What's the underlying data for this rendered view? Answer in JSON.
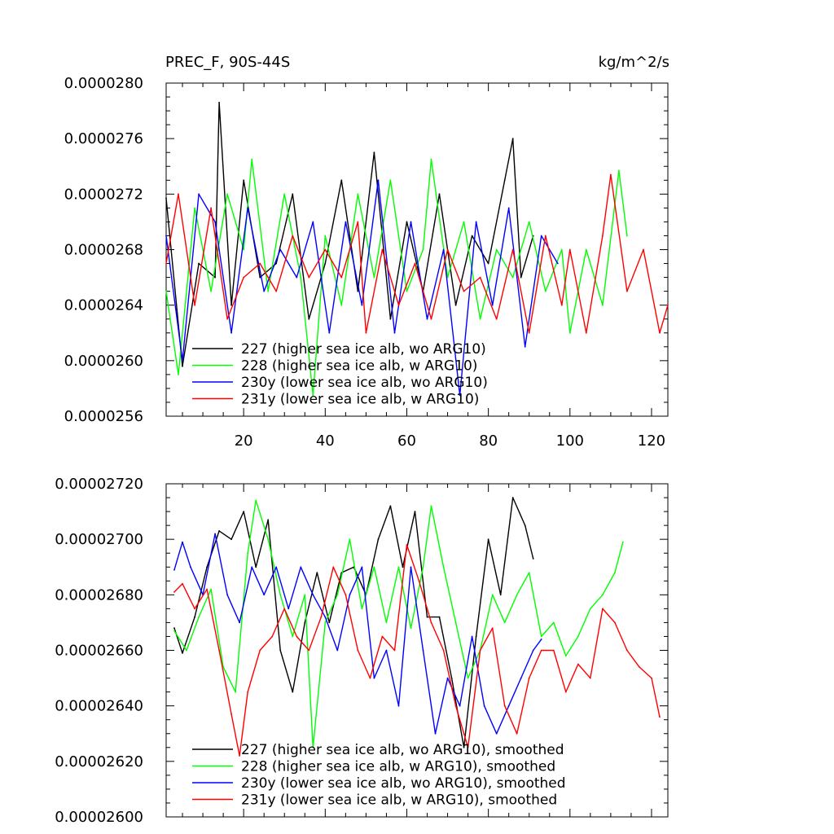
{
  "chart_data": [
    {
      "type": "line",
      "title": "PREC_F, 90S-44S",
      "units": "kg/m^2/s",
      "xlabel": "",
      "ylabel": "",
      "xlim": [
        1,
        124
      ],
      "ylim": [
        2.56e-05,
        2.8e-05
      ],
      "xticks": [
        20,
        40,
        60,
        80,
        100,
        120
      ],
      "xtick_labels": [
        "20",
        "40",
        "60",
        "80",
        "100",
        "120"
      ],
      "yticks": [
        2.56e-05,
        2.6e-05,
        2.64e-05,
        2.68e-05,
        2.72e-05,
        2.76e-05,
        2.8e-05
      ],
      "ytick_labels": [
        "0.0000256",
        "0.0000260",
        "0.0000264",
        "0.0000268",
        "0.0000272",
        "0.0000276",
        "0.0000280"
      ],
      "legend_position": "bottom-left",
      "series": [
        {
          "name": "227 (higher sea ice alb, wo ARG10)",
          "color": "#000000",
          "x": [
            1,
            5,
            9,
            13,
            14,
            17,
            20,
            24,
            28,
            32,
            36,
            40,
            44,
            48,
            52,
            56,
            60,
            64,
            68,
            72,
            76,
            80,
            84,
            86,
            88,
            91
          ],
          "values": [
            2.717e-05,
            2.596e-05,
            2.67e-05,
            2.66e-05,
            2.786e-05,
            2.64e-05,
            2.73e-05,
            2.66e-05,
            2.67e-05,
            2.72e-05,
            2.63e-05,
            2.67e-05,
            2.73e-05,
            2.65e-05,
            2.75e-05,
            2.63e-05,
            2.7e-05,
            2.65e-05,
            2.72e-05,
            2.64e-05,
            2.69e-05,
            2.67e-05,
            2.73e-05,
            2.76e-05,
            2.66e-05,
            2.69e-05
          ]
        },
        {
          "name": "228 (higher sea ice alb, w ARG10)",
          "color": "#00ff00",
          "x": [
            1,
            4,
            8,
            12,
            16,
            20,
            22,
            26,
            30,
            34,
            37,
            40,
            44,
            48,
            52,
            56,
            60,
            64,
            66,
            70,
            74,
            78,
            82,
            86,
            90,
            94,
            98,
            100,
            104,
            108,
            112,
            114
          ],
          "values": [
            2.65e-05,
            2.59e-05,
            2.71e-05,
            2.65e-05,
            2.72e-05,
            2.68e-05,
            2.745e-05,
            2.65e-05,
            2.72e-05,
            2.66e-05,
            2.575e-05,
            2.69e-05,
            2.64e-05,
            2.72e-05,
            2.66e-05,
            2.73e-05,
            2.65e-05,
            2.68e-05,
            2.745e-05,
            2.66e-05,
            2.7e-05,
            2.63e-05,
            2.68e-05,
            2.66e-05,
            2.7e-05,
            2.65e-05,
            2.68e-05,
            2.62e-05,
            2.68e-05,
            2.64e-05,
            2.737e-05,
            2.69e-05
          ]
        },
        {
          "name": "230y (lower sea ice alb, wo ARG10)",
          "color": "#0000ff",
          "x": [
            1,
            5,
            9,
            13,
            17,
            21,
            25,
            29,
            33,
            37,
            41,
            45,
            49,
            53,
            57,
            61,
            65,
            69,
            73,
            77,
            81,
            85,
            89,
            93,
            97
          ],
          "values": [
            2.69e-05,
            2.6e-05,
            2.72e-05,
            2.7e-05,
            2.62e-05,
            2.71e-05,
            2.65e-05,
            2.68e-05,
            2.66e-05,
            2.7e-05,
            2.62e-05,
            2.7e-05,
            2.64e-05,
            2.73e-05,
            2.62e-05,
            2.7e-05,
            2.63e-05,
            2.68e-05,
            2.575e-05,
            2.7e-05,
            2.64e-05,
            2.71e-05,
            2.61e-05,
            2.69e-05,
            2.67e-05
          ]
        },
        {
          "name": "231y (lower sea ice alb, w ARG10)",
          "color": "#ff0000",
          "x": [
            1,
            4,
            8,
            12,
            16,
            20,
            24,
            28,
            32,
            36,
            40,
            44,
            48,
            50,
            54,
            58,
            62,
            66,
            70,
            74,
            78,
            82,
            86,
            90,
            94,
            98,
            100,
            104,
            108,
            110,
            114,
            118,
            122,
            124
          ],
          "values": [
            2.67e-05,
            2.72e-05,
            2.64e-05,
            2.71e-05,
            2.63e-05,
            2.66e-05,
            2.67e-05,
            2.65e-05,
            2.69e-05,
            2.66e-05,
            2.68e-05,
            2.66e-05,
            2.7e-05,
            2.62e-05,
            2.68e-05,
            2.64e-05,
            2.67e-05,
            2.63e-05,
            2.68e-05,
            2.65e-05,
            2.66e-05,
            2.63e-05,
            2.68e-05,
            2.62e-05,
            2.69e-05,
            2.64e-05,
            2.68e-05,
            2.62e-05,
            2.69e-05,
            2.734e-05,
            2.65e-05,
            2.68e-05,
            2.62e-05,
            2.64e-05
          ]
        }
      ]
    },
    {
      "type": "line",
      "title": "",
      "xlabel": "",
      "ylabel": "",
      "xlim": [
        1,
        124
      ],
      "ylim": [
        2.6e-05,
        2.72e-05
      ],
      "xticks": [
        20,
        40,
        60,
        80,
        100,
        120
      ],
      "xtick_labels": [],
      "yticks": [
        2.6e-05,
        2.62e-05,
        2.64e-05,
        2.66e-05,
        2.68e-05,
        2.7e-05,
        2.72e-05
      ],
      "ytick_labels": [
        "0.00002600",
        "0.00002620",
        "0.00002640",
        "0.00002660",
        "0.00002680",
        "0.00002700",
        "0.00002720"
      ],
      "legend_position": "bottom-left",
      "series": [
        {
          "name": "227 (higher sea ice alb, wo ARG10), smoothed",
          "color": "#000000",
          "x": [
            3,
            5,
            8,
            11,
            14,
            17,
            20,
            23,
            26,
            29,
            32,
            35,
            38,
            41,
            44,
            47,
            50,
            53,
            56,
            59,
            62,
            65,
            68,
            71,
            74,
            77,
            80,
            83,
            86,
            89,
            91
          ],
          "values": [
            2.668e-05,
            2.659e-05,
            2.672e-05,
            2.69e-05,
            2.703e-05,
            2.7e-05,
            2.71e-05,
            2.69e-05,
            2.707e-05,
            2.66e-05,
            2.645e-05,
            2.67e-05,
            2.688e-05,
            2.67e-05,
            2.688e-05,
            2.69e-05,
            2.68e-05,
            2.7e-05,
            2.712e-05,
            2.69e-05,
            2.71e-05,
            2.672e-05,
            2.672e-05,
            2.65e-05,
            2.625e-05,
            2.665e-05,
            2.7e-05,
            2.68e-05,
            2.715e-05,
            2.705e-05,
            2.693e-05
          ]
        },
        {
          "name": "228 (higher sea ice alb, w ARG10), smoothed",
          "color": "#00ff00",
          "x": [
            3,
            6,
            9,
            12,
            15,
            18,
            21,
            23,
            26,
            29,
            32,
            35,
            37,
            40,
            43,
            46,
            49,
            52,
            55,
            58,
            61,
            64,
            66,
            69,
            72,
            75,
            78,
            81,
            84,
            87,
            90,
            93,
            96,
            99,
            102,
            105,
            108,
            111,
            113
          ],
          "values": [
            2.667e-05,
            2.66e-05,
            2.672e-05,
            2.682e-05,
            2.654e-05,
            2.645e-05,
            2.695e-05,
            2.714e-05,
            2.7e-05,
            2.68e-05,
            2.665e-05,
            2.68e-05,
            2.625e-05,
            2.67e-05,
            2.68e-05,
            2.7e-05,
            2.675e-05,
            2.69e-05,
            2.67e-05,
            2.69e-05,
            2.668e-05,
            2.69e-05,
            2.712e-05,
            2.69e-05,
            2.67e-05,
            2.65e-05,
            2.66e-05,
            2.68e-05,
            2.67e-05,
            2.68e-05,
            2.688e-05,
            2.665e-05,
            2.67e-05,
            2.658e-05,
            2.665e-05,
            2.675e-05,
            2.68e-05,
            2.688e-05,
            2.699e-05
          ]
        },
        {
          "name": "230y (lower sea ice alb, wo ARG10), smoothed",
          "color": "#0000ff",
          "x": [
            3,
            5,
            7,
            10,
            13,
            16,
            19,
            22,
            25,
            28,
            31,
            34,
            37,
            40,
            43,
            46,
            49,
            52,
            55,
            58,
            61,
            64,
            67,
            70,
            73,
            76,
            79,
            82,
            85,
            88,
            91,
            93
          ],
          "values": [
            2.689e-05,
            2.699e-05,
            2.69e-05,
            2.68e-05,
            2.702e-05,
            2.68e-05,
            2.67e-05,
            2.69e-05,
            2.68e-05,
            2.69e-05,
            2.675e-05,
            2.69e-05,
            2.68e-05,
            2.672e-05,
            2.66e-05,
            2.68e-05,
            2.69e-05,
            2.65e-05,
            2.66e-05,
            2.64e-05,
            2.69e-05,
            2.66e-05,
            2.63e-05,
            2.65e-05,
            2.64e-05,
            2.665e-05,
            2.64e-05,
            2.63e-05,
            2.64e-05,
            2.65e-05,
            2.66e-05,
            2.664e-05
          ]
        },
        {
          "name": "231y (lower sea ice alb, w ARG10), smoothed",
          "color": "#ff0000",
          "x": [
            3,
            5,
            8,
            11,
            14,
            17,
            19,
            21,
            24,
            27,
            30,
            33,
            36,
            39,
            42,
            45,
            48,
            51,
            54,
            57,
            60,
            63,
            66,
            69,
            72,
            75,
            78,
            81,
            84,
            87,
            90,
            93,
            96,
            99,
            102,
            105,
            108,
            111,
            114,
            117,
            120,
            122
          ],
          "values": [
            2.681e-05,
            2.684e-05,
            2.675e-05,
            2.682e-05,
            2.66e-05,
            2.637e-05,
            2.622e-05,
            2.645e-05,
            2.66e-05,
            2.665e-05,
            2.675e-05,
            2.665e-05,
            2.66e-05,
            2.672e-05,
            2.69e-05,
            2.68e-05,
            2.66e-05,
            2.65e-05,
            2.665e-05,
            2.66e-05,
            2.698e-05,
            2.685e-05,
            2.67e-05,
            2.66e-05,
            2.64e-05,
            2.625e-05,
            2.66e-05,
            2.668e-05,
            2.64e-05,
            2.63e-05,
            2.65e-05,
            2.66e-05,
            2.66e-05,
            2.645e-05,
            2.655e-05,
            2.65e-05,
            2.675e-05,
            2.67e-05,
            2.66e-05,
            2.654e-05,
            2.65e-05,
            2.636e-05
          ]
        }
      ]
    }
  ]
}
